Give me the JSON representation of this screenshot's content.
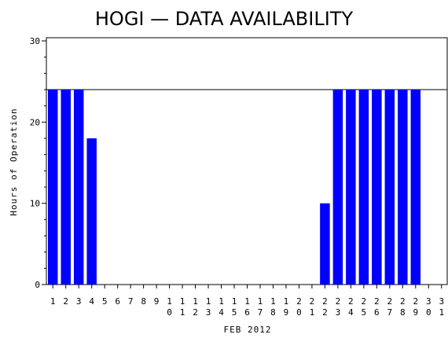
{
  "chart_data": {
    "type": "bar",
    "title": "HOGI — DATA AVAILABILITY",
    "xlabel": "FEB 2012",
    "ylabel": "Hours of Operation",
    "ylim": [
      0,
      30
    ],
    "yticks": [
      0,
      10,
      20,
      30
    ],
    "reference_line": 24,
    "bar_color": "#0000ff",
    "grid": false,
    "categories": [
      "1",
      "2",
      "3",
      "4",
      "5",
      "6",
      "7",
      "8",
      "9",
      "10",
      "11",
      "12",
      "13",
      "14",
      "15",
      "16",
      "17",
      "18",
      "19",
      "20",
      "21",
      "22",
      "23",
      "24",
      "25",
      "26",
      "27",
      "28",
      "29",
      "30",
      "31"
    ],
    "values": [
      24,
      24,
      24,
      18,
      0,
      0,
      0,
      0,
      0,
      0,
      0,
      0,
      0,
      0,
      0,
      0,
      0,
      0,
      0,
      0,
      0,
      10,
      24,
      24,
      24,
      24,
      24,
      24,
      24,
      0,
      0
    ]
  }
}
